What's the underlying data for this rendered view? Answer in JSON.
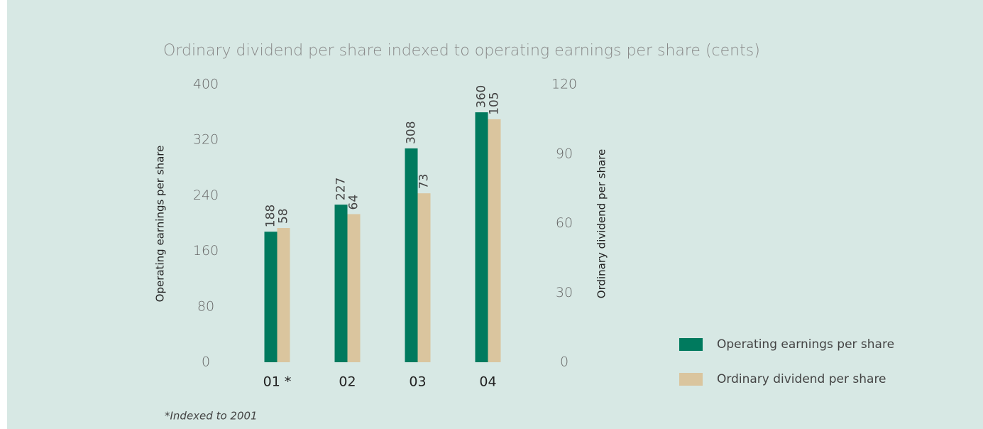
{
  "chart_data": {
    "type": "bar",
    "title": "Ordinary dividend per share indexed to operating earnings per share (cents)",
    "categories": [
      "01 *",
      "02",
      "03",
      "04"
    ],
    "series": [
      {
        "name": "Operating earnings per share",
        "color": "#007a5e",
        "values": [
          188,
          227,
          308,
          360
        ]
      },
      {
        "name": "Ordinary dividend per share",
        "color": "#dac59e",
        "values": [
          58,
          64,
          73,
          105
        ],
        "axis": "y2"
      }
    ],
    "ylabel": "Operating earnings per share",
    "y2label": "Ordinary dividend per share",
    "ylim": [
      0,
      400
    ],
    "yticks": [
      0,
      80,
      160,
      240,
      320,
      400
    ],
    "y2lim": [
      0,
      120
    ],
    "y2ticks": [
      0,
      30,
      60,
      90,
      120
    ],
    "legend": "right",
    "annotation": "*Indexed to 2001"
  }
}
